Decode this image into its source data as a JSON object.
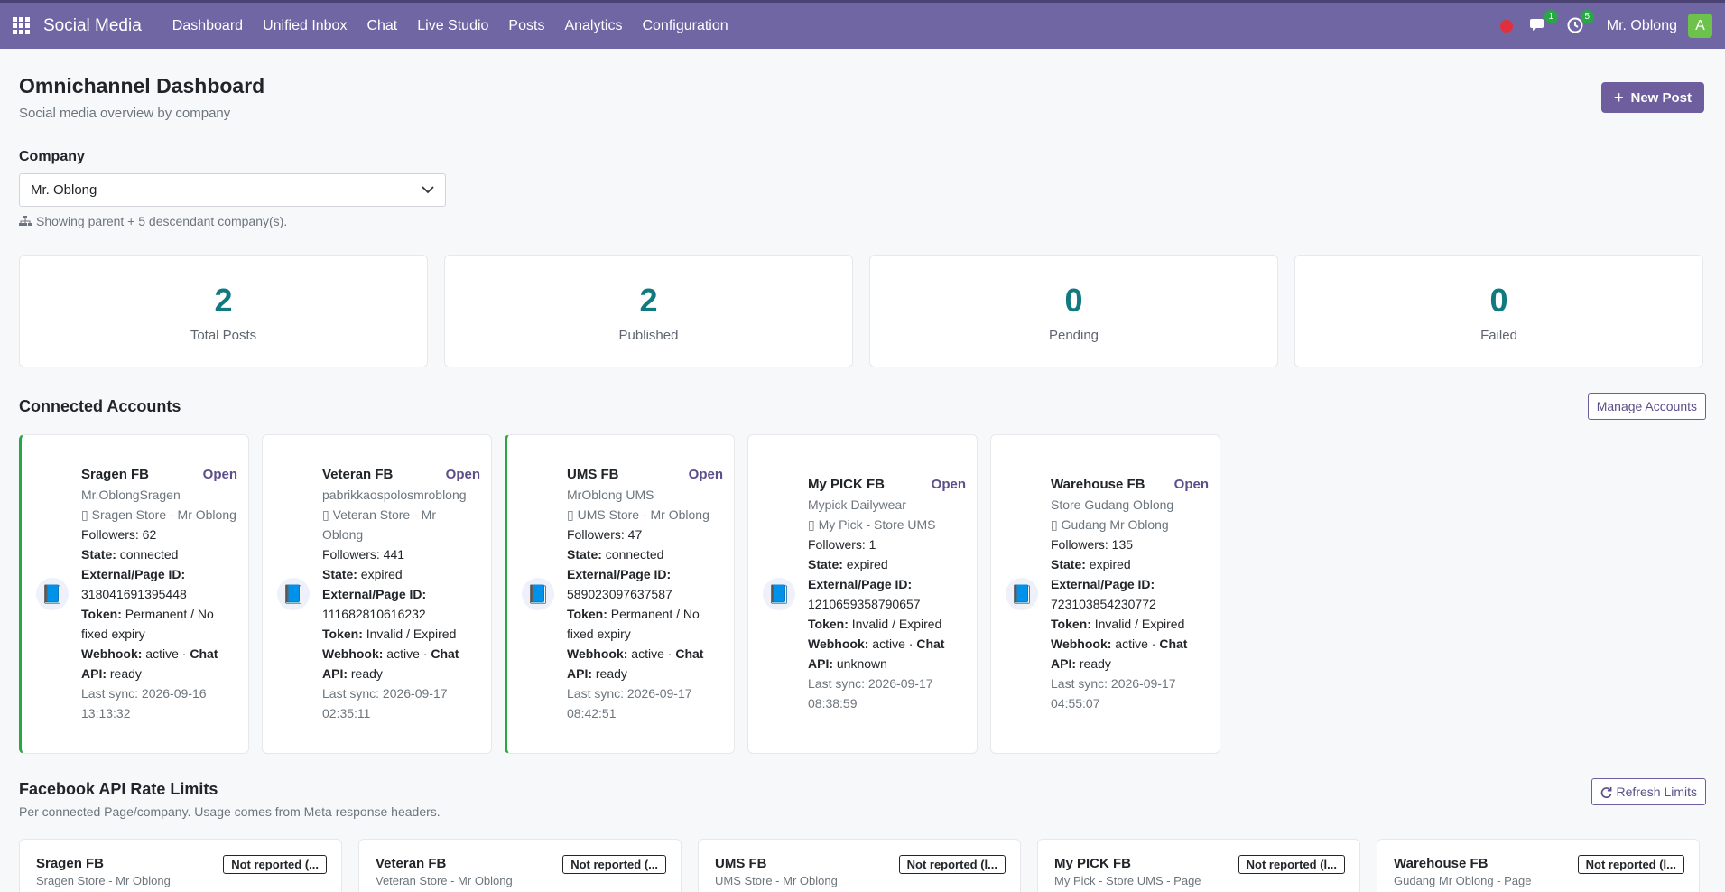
{
  "nav": {
    "brand": "Social Media",
    "menu": [
      "Dashboard",
      "Unified Inbox",
      "Chat",
      "Live Studio",
      "Posts",
      "Analytics",
      "Configuration"
    ],
    "chat_badge": "1",
    "activity_badge": "5",
    "user_name": "Mr. Oblong",
    "avatar_letter": "A"
  },
  "header": {
    "title": "Omnichannel Dashboard",
    "subtitle": "Social media overview by company",
    "new_post_label": "New Post"
  },
  "company": {
    "label": "Company",
    "selected": "Mr. Oblong",
    "hint": "Showing parent + 5 descendant company(s)."
  },
  "stats": [
    {
      "value": "2",
      "label": "Total Posts"
    },
    {
      "value": "2",
      "label": "Published"
    },
    {
      "value": "0",
      "label": "Pending"
    },
    {
      "value": "0",
      "label": "Failed"
    }
  ],
  "accounts_section": {
    "title": "Connected Accounts",
    "manage_label": "Manage Accounts",
    "open_label": "Open"
  },
  "accounts": [
    {
      "name": "Sragen FB",
      "handle": "Mr.OblongSragen",
      "company": "Sragen Store - Mr Oblong",
      "followers": "Followers: 62",
      "state": "connected",
      "page_id": "318041691395448",
      "token": "Permanent / No fixed expiry",
      "webhook": "active",
      "chat_api": "ready",
      "last_sync": "Last sync: 2026-09-16 13:13:32"
    },
    {
      "name": "Veteran FB",
      "handle": "pabrikkaospolosmroblong",
      "company": "Veteran Store - Mr Oblong",
      "followers": "Followers: 441",
      "state": "expired",
      "page_id": "111682810616232",
      "token": "Invalid / Expired",
      "webhook": "active",
      "chat_api": "ready",
      "last_sync": "Last sync: 2026-09-17 02:35:11"
    },
    {
      "name": "UMS FB",
      "handle": "MrOblong UMS",
      "company": "UMS Store - Mr Oblong",
      "followers": "Followers: 47",
      "state": "connected",
      "page_id": "589023097637587",
      "token": "Permanent / No fixed expiry",
      "webhook": "active",
      "chat_api": "ready",
      "last_sync": "Last sync: 2026-09-17 08:42:51"
    },
    {
      "name": "My PICK FB",
      "handle": "Mypick Dailywear",
      "company": "My Pick - Store UMS",
      "followers": "Followers: 1",
      "state": "expired",
      "page_id": "1210659358790657",
      "token": "Invalid / Expired",
      "webhook": "active",
      "chat_api": "unknown",
      "last_sync": "Last sync: 2026-09-17 08:38:59"
    },
    {
      "name": "Warehouse FB",
      "handle": "Store Gudang Oblong",
      "company": "Gudang Mr Oblong",
      "followers": "Followers: 135",
      "state": "expired",
      "page_id": "723103854230772",
      "token": "Invalid / Expired",
      "webhook": "active",
      "chat_api": "ready",
      "last_sync": "Last sync: 2026-09-17 04:55:07"
    }
  ],
  "labels": {
    "state": "State:",
    "page_id": "External/Page ID:",
    "token": "Token:",
    "webhook": "Webhook:",
    "chat": "Chat",
    "api": "API:"
  },
  "rate_limits": {
    "title": "Facebook API Rate Limits",
    "subtitle": "Per connected Page/company. Usage comes from Meta response headers.",
    "refresh_label": "Refresh Limits",
    "items": [
      {
        "name": "Sragen FB",
        "sub": "Sragen Store - Mr Oblong",
        "badge": "Not reported (..."
      },
      {
        "name": "Veteran FB",
        "sub": "Veteran Store - Mr Oblong",
        "badge": "Not reported (..."
      },
      {
        "name": "UMS FB",
        "sub": "UMS Store - Mr Oblong",
        "badge": "Not reported (l..."
      },
      {
        "name": "My PICK FB",
        "sub": "My Pick - Store UMS - Page",
        "badge": "Not reported (l..."
      },
      {
        "name": "Warehouse FB",
        "sub": "Gudang Mr Oblong - Page",
        "badge": "Not reported (l..."
      }
    ]
  }
}
